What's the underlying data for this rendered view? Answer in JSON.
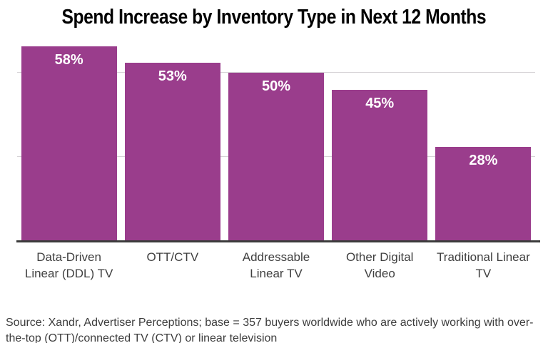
{
  "title": "Spend Increase by Inventory Type in Next 12 Months",
  "chart_data": {
    "type": "bar",
    "title": "Spend Increase by Inventory Type in Next 12 Months",
    "categories": [
      "Data-Driven Linear (DDL) TV",
      "OTT/CTV",
      "Addressable Linear TV",
      "Other Digital Video",
      "Traditional Linear TV"
    ],
    "values": [
      58,
      53,
      50,
      45,
      28
    ],
    "value_labels": [
      "58%",
      "53%",
      "50%",
      "45%",
      "28%"
    ],
    "xlabel": "",
    "ylabel": "",
    "ylim": [
      0,
      60
    ],
    "unit": "percent",
    "gridlines_pct": [
      25,
      50
    ],
    "grid_on": true,
    "legend_position": "none"
  },
  "source_note": "Source: Xandr, Advertiser Perceptions; base = 357 buyers worldwide who are actively working with over-the-top (OTT)/connected TV (CTV) or linear television",
  "colors": {
    "bar": "#9a3d8c",
    "gridline": "#d6d3d6",
    "axis_line": "#3b3b3b",
    "title_text": "#000000",
    "label_text": "#404040",
    "value_text": "#ffffff",
    "source_text": "#3d3d3d",
    "background": "#ffffff"
  }
}
